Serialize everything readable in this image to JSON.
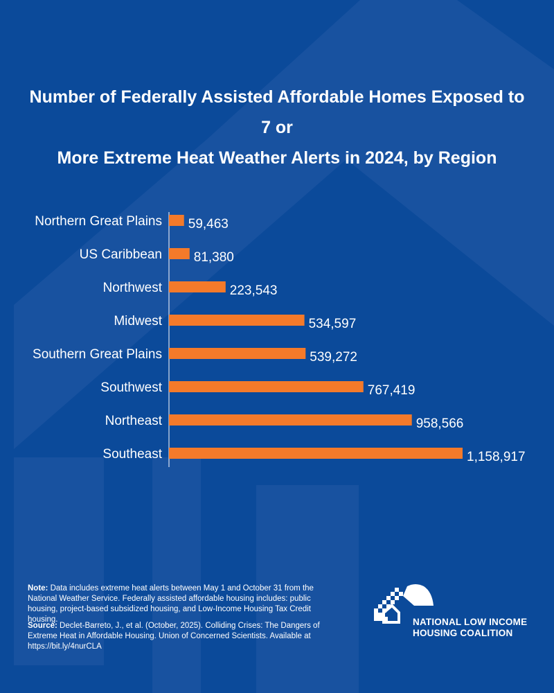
{
  "title": {
    "line1": "Number of Federally Assisted Affordable Homes Exposed to 7 or",
    "line2": "More Extreme Heat Weather Alerts in 2024, by Region"
  },
  "chart_data": {
    "type": "bar",
    "orientation": "horizontal",
    "title": "Number of Federally Assisted Affordable Homes Exposed to 7 or More Extreme Heat Weather Alerts in 2024, by Region",
    "categories": [
      "Northern Great Plains",
      "US Caribbean",
      "Northwest",
      "Midwest",
      "Southern Great Plains",
      "Southwest",
      "Northeast",
      "Southeast"
    ],
    "values": [
      59463,
      81380,
      223543,
      534597,
      539272,
      767419,
      958566,
      1158917
    ],
    "value_labels": [
      "59,463",
      "81,380",
      "223,543",
      "534,597",
      "539,272",
      "767,419",
      "958,566",
      "1,158,917"
    ],
    "xlim": [
      0,
      1158917
    ],
    "bar_color": "#f47a2a",
    "xlabel": "",
    "ylabel": ""
  },
  "note": {
    "label": "Note:",
    "text": "Data includes extreme heat alerts between May 1 and October 31 from the National Weather Service. Federally assisted affordable housing includes: public housing, project-based subsidized housing, and Low-Income Housing Tax Credit housing."
  },
  "source": {
    "label": "Source:",
    "text": "Declet-Barreto, J., et al. (October, 2025). Colliding Crises: The Dangers of Extreme Heat in Affordable Housing. Union of Concerned Scientists. Available at https://bit.ly/4nurCLA"
  },
  "logo": {
    "line1": "NATIONAL LOW INCOME",
    "line2": "HOUSING COALITION"
  },
  "colors": {
    "background": "#0b4a9a",
    "shape": "#2459a6",
    "bar": "#f47a2a",
    "text": "#ffffff"
  }
}
